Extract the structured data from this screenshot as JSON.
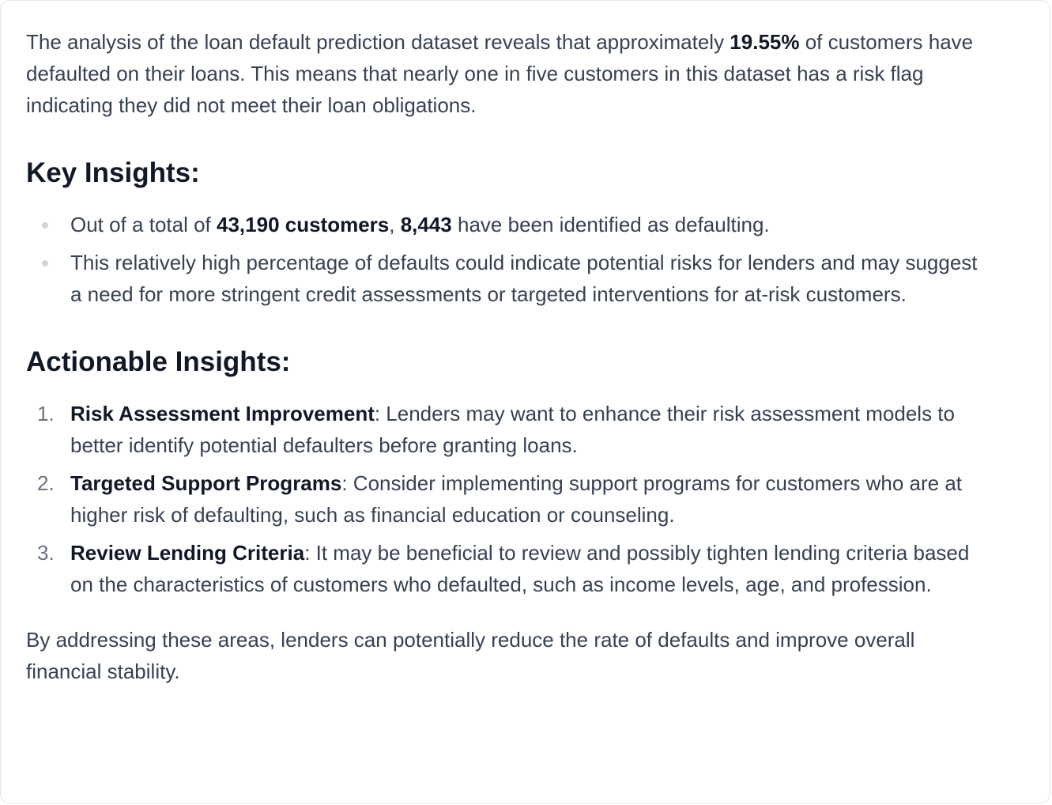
{
  "intro": {
    "before": "The analysis of the loan default prediction dataset reveals that approximately ",
    "highlight": "19.55%",
    "after": " of customers have defaulted on their loans. This means that nearly one in five customers in this dataset has a risk flag indicating they did not meet their loan obligations."
  },
  "key_insights": {
    "heading": "Key Insights:",
    "item1": {
      "before": "Out of a total of ",
      "total": "43,190 customers",
      "sep": ", ",
      "defaulting": "8,443",
      "after": " have been identified as defaulting."
    },
    "item2": {
      "text": "This relatively high percentage of defaults could indicate potential risks for lenders and may suggest a need for more stringent credit assessments or targeted interventions for at-risk customers."
    }
  },
  "actionable_insights": {
    "heading": "Actionable Insights:",
    "items": [
      {
        "number": "1.",
        "title": "Risk Assessment Improvement",
        "text": ": Lenders may want to enhance their risk assessment models to better identify potential defaulters before granting loans."
      },
      {
        "number": "2.",
        "title": "Targeted Support Programs",
        "text": ": Consider implementing support programs for customers who are at higher risk of defaulting, such as financial education or counseling."
      },
      {
        "number": "3.",
        "title": "Review Lending Criteria",
        "text": ": It may be beneficial to review and possibly tighten lending criteria based on the characteristics of customers who defaulted, such as income levels, age, and profession."
      }
    ]
  },
  "closing": "By addressing these areas, lenders can potentially reduce the rate of defaults and improve overall financial stability."
}
